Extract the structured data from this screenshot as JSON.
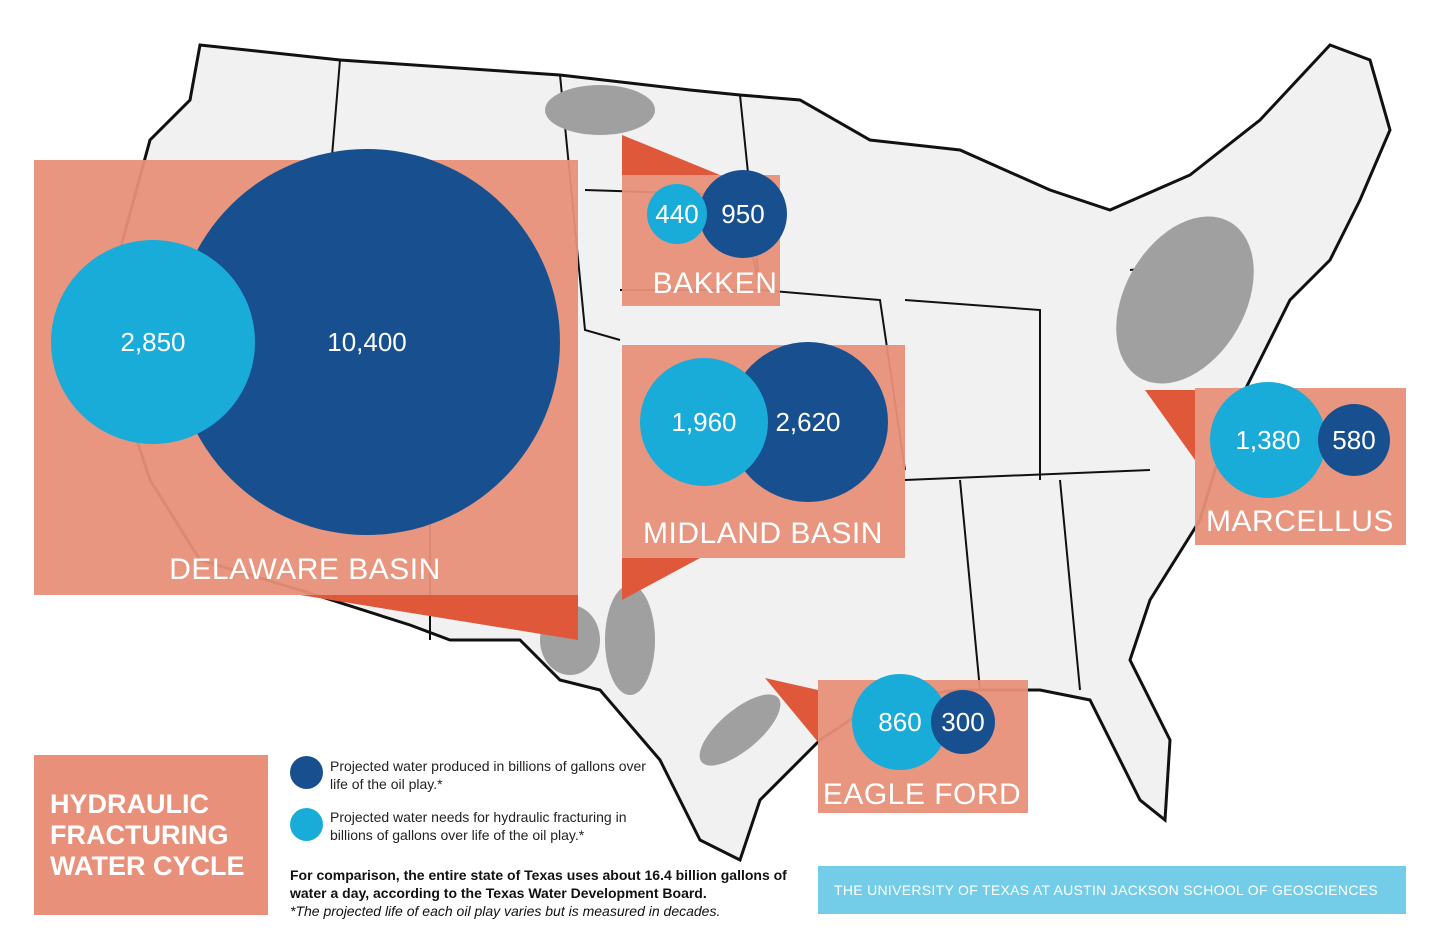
{
  "title": [
    "HYDRAULIC",
    "FRACTURING",
    "WATER CYCLE"
  ],
  "colors": {
    "produced": "#174f8f",
    "needs": "#19acd8",
    "region_box": "#e8907a",
    "pointer": "#e0583a",
    "shale": "#a0a0a0",
    "footer": "#73cde8"
  },
  "legend": {
    "produced": "Projected water produced in billions of gallons over life of the oil play.*",
    "needs": "Projected water needs for hydraulic fracturing in billions of gallons over life of the oil play.*"
  },
  "note": {
    "comparison": "For comparison, the entire state of Texas uses about 16.4 billion gallons of water a day, according to the Texas Water Development Board.",
    "footnote": "*The projected life of each oil play varies but is measured in decades."
  },
  "footer": "THE UNIVERSITY OF TEXAS AT AUSTIN JACKSON SCHOOL OF GEOSCIENCES",
  "regions": [
    {
      "name": "DELAWARE BASIN",
      "needs": "2,850",
      "produced": "10,400"
    },
    {
      "name": "BAKKEN",
      "needs": "440",
      "produced": "950"
    },
    {
      "name": "MIDLAND BASIN",
      "needs": "1,960",
      "produced": "2,620"
    },
    {
      "name": "MARCELLUS",
      "needs": "1,380",
      "produced": "580"
    },
    {
      "name": "EAGLE FORD",
      "needs": "860",
      "produced": "300"
    }
  ]
}
